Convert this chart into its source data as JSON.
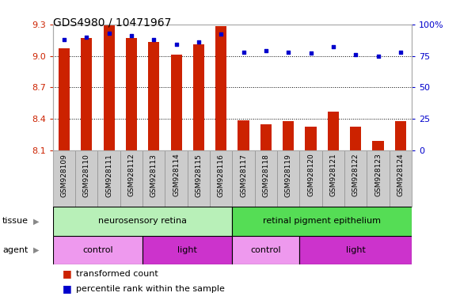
{
  "title": "GDS4980 / 10471967",
  "samples": [
    "GSM928109",
    "GSM928110",
    "GSM928111",
    "GSM928112",
    "GSM928113",
    "GSM928114",
    "GSM928115",
    "GSM928116",
    "GSM928117",
    "GSM928118",
    "GSM928119",
    "GSM928120",
    "GSM928121",
    "GSM928122",
    "GSM928123",
    "GSM928124"
  ],
  "transformed_count": [
    9.07,
    9.17,
    9.29,
    9.17,
    9.13,
    9.01,
    9.11,
    9.28,
    8.39,
    8.35,
    8.38,
    8.33,
    8.47,
    8.33,
    8.19,
    8.38
  ],
  "percentile_rank": [
    88,
    90,
    93,
    91,
    88,
    84,
    86,
    92,
    78,
    79,
    78,
    77,
    82,
    76,
    75,
    78
  ],
  "ylim_left": [
    8.1,
    9.3
  ],
  "ylim_right": [
    0,
    100
  ],
  "yticks_left": [
    8.1,
    8.4,
    8.7,
    9.0,
    9.3
  ],
  "yticks_right": [
    0,
    25,
    50,
    75,
    100
  ],
  "bar_color": "#cc2200",
  "dot_color": "#0000cc",
  "tissue_groups": [
    {
      "label": "neurosensory retina",
      "start": 0,
      "end": 8,
      "color": "#b8f0b8"
    },
    {
      "label": "retinal pigment epithelium",
      "start": 8,
      "end": 16,
      "color": "#55dd55"
    }
  ],
  "agent_groups": [
    {
      "label": "control",
      "start": 0,
      "end": 4,
      "color": "#ee99ee"
    },
    {
      "label": "light",
      "start": 4,
      "end": 8,
      "color": "#cc33cc"
    },
    {
      "label": "control",
      "start": 8,
      "end": 11,
      "color": "#ee99ee"
    },
    {
      "label": "light",
      "start": 11,
      "end": 16,
      "color": "#cc33cc"
    }
  ],
  "legend_items": [
    {
      "label": "transformed count",
      "color": "#cc2200"
    },
    {
      "label": "percentile rank within the sample",
      "color": "#0000cc"
    }
  ],
  "bg_color": "#ffffff",
  "grid_color": "#000000",
  "tick_color_left": "#cc2200",
  "tick_color_right": "#0000cc",
  "xtick_bg": "#cccccc",
  "spine_color": "#aaaaaa"
}
